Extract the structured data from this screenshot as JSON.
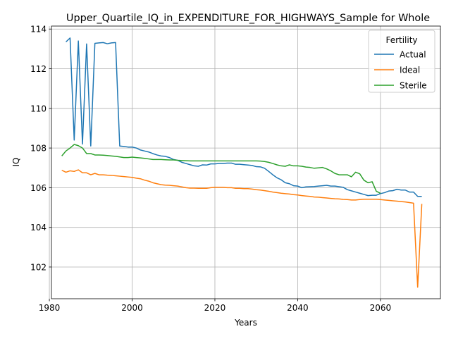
{
  "chart_data": {
    "type": "line",
    "title": "Upper_Quartile_IQ_in_EXPENDITURE_FOR_HIGHWAYS_Sample for Whole",
    "xlabel": "Years",
    "ylabel": "IQ",
    "xlim": [
      1980.5,
      2074.5
    ],
    "ylim": [
      100.4,
      114.15
    ],
    "xticks": [
      1980,
      2000,
      2020,
      2040,
      2060
    ],
    "yticks": [
      102,
      104,
      106,
      108,
      110,
      112,
      114
    ],
    "grid": true,
    "legend": {
      "title": "Fertility",
      "placement": "top-right"
    },
    "series": [
      {
        "name": "Actual",
        "color": "#1f77b4",
        "points": [
          [
            1984,
            113.35
          ],
          [
            1985,
            113.55
          ],
          [
            1986,
            108.4
          ],
          [
            1987,
            113.4
          ],
          [
            1988,
            108.2
          ],
          [
            1989,
            113.25
          ],
          [
            1990,
            108.1
          ],
          [
            1991,
            113.28
          ],
          [
            1992,
            113.3
          ],
          [
            1993,
            113.32
          ],
          [
            1994,
            113.26
          ],
          [
            1995,
            113.3
          ],
          [
            1996,
            113.32
          ],
          [
            1997,
            108.1
          ],
          [
            1998,
            108.08
          ],
          [
            1999,
            108.05
          ],
          [
            2000,
            108.05
          ],
          [
            2001,
            108.0
          ],
          [
            2002,
            107.9
          ],
          [
            2003,
            107.85
          ],
          [
            2004,
            107.8
          ],
          [
            2005,
            107.72
          ],
          [
            2006,
            107.65
          ],
          [
            2007,
            107.6
          ],
          [
            2008,
            107.58
          ],
          [
            2009,
            107.52
          ],
          [
            2010,
            107.42
          ],
          [
            2011,
            107.38
          ],
          [
            2012,
            107.28
          ],
          [
            2013,
            107.22
          ],
          [
            2014,
            107.16
          ],
          [
            2015,
            107.1
          ],
          [
            2016,
            107.08
          ],
          [
            2017,
            107.15
          ],
          [
            2018,
            107.14
          ],
          [
            2019,
            107.2
          ],
          [
            2020,
            107.2
          ],
          [
            2021,
            107.22
          ],
          [
            2022,
            107.22
          ],
          [
            2023,
            107.24
          ],
          [
            2024,
            107.24
          ],
          [
            2025,
            107.18
          ],
          [
            2026,
            107.18
          ],
          [
            2027,
            107.16
          ],
          [
            2028,
            107.14
          ],
          [
            2029,
            107.12
          ],
          [
            2030,
            107.06
          ],
          [
            2031,
            107.05
          ],
          [
            2032,
            106.98
          ],
          [
            2033,
            106.82
          ],
          [
            2034,
            106.65
          ],
          [
            2035,
            106.5
          ],
          [
            2036,
            106.4
          ],
          [
            2037,
            106.25
          ],
          [
            2038,
            106.2
          ],
          [
            2039,
            106.1
          ],
          [
            2040,
            106.08
          ],
          [
            2041,
            106.0
          ],
          [
            2042,
            106.04
          ],
          [
            2043,
            106.05
          ],
          [
            2044,
            106.06
          ],
          [
            2045,
            106.08
          ],
          [
            2046,
            106.1
          ],
          [
            2047,
            106.12
          ],
          [
            2048,
            106.08
          ],
          [
            2049,
            106.08
          ],
          [
            2050,
            106.05
          ],
          [
            2051,
            106.02
          ],
          [
            2052,
            105.9
          ],
          [
            2053,
            105.84
          ],
          [
            2054,
            105.78
          ],
          [
            2055,
            105.72
          ],
          [
            2056,
            105.66
          ],
          [
            2057,
            105.6
          ],
          [
            2058,
            105.62
          ],
          [
            2059,
            105.62
          ],
          [
            2060,
            105.7
          ],
          [
            2061,
            105.75
          ],
          [
            2062,
            105.83
          ],
          [
            2063,
            105.85
          ],
          [
            2064,
            105.92
          ],
          [
            2065,
            105.88
          ],
          [
            2066,
            105.88
          ],
          [
            2067,
            105.78
          ],
          [
            2068,
            105.78
          ],
          [
            2069,
            105.56
          ],
          [
            2070,
            105.56
          ]
        ]
      },
      {
        "name": "Ideal",
        "color": "#ff7f0e",
        "points": [
          [
            1983,
            106.88
          ],
          [
            1984,
            106.78
          ],
          [
            1985,
            106.85
          ],
          [
            1986,
            106.82
          ],
          [
            1987,
            106.9
          ],
          [
            1988,
            106.75
          ],
          [
            1989,
            106.75
          ],
          [
            1990,
            106.65
          ],
          [
            1991,
            106.72
          ],
          [
            1992,
            106.65
          ],
          [
            1993,
            106.65
          ],
          [
            1994,
            106.63
          ],
          [
            1995,
            106.62
          ],
          [
            1996,
            106.6
          ],
          [
            1997,
            106.58
          ],
          [
            1998,
            106.56
          ],
          [
            1999,
            106.54
          ],
          [
            2000,
            106.52
          ],
          [
            2001,
            106.48
          ],
          [
            2002,
            106.45
          ],
          [
            2003,
            106.38
          ],
          [
            2004,
            106.33
          ],
          [
            2005,
            106.25
          ],
          [
            2006,
            106.2
          ],
          [
            2007,
            106.15
          ],
          [
            2008,
            106.13
          ],
          [
            2009,
            106.12
          ],
          [
            2010,
            106.1
          ],
          [
            2011,
            106.08
          ],
          [
            2012,
            106.04
          ],
          [
            2013,
            106.0
          ],
          [
            2014,
            105.98
          ],
          [
            2015,
            105.98
          ],
          [
            2016,
            105.97
          ],
          [
            2017,
            105.97
          ],
          [
            2018,
            105.97
          ],
          [
            2019,
            106.0
          ],
          [
            2020,
            106.02
          ],
          [
            2021,
            106.02
          ],
          [
            2022,
            106.02
          ],
          [
            2023,
            106.0
          ],
          [
            2024,
            106.0
          ],
          [
            2025,
            105.97
          ],
          [
            2026,
            105.97
          ],
          [
            2027,
            105.95
          ],
          [
            2028,
            105.95
          ],
          [
            2029,
            105.93
          ],
          [
            2030,
            105.9
          ],
          [
            2031,
            105.88
          ],
          [
            2032,
            105.85
          ],
          [
            2033,
            105.82
          ],
          [
            2034,
            105.78
          ],
          [
            2035,
            105.75
          ],
          [
            2036,
            105.72
          ],
          [
            2037,
            105.7
          ],
          [
            2038,
            105.68
          ],
          [
            2039,
            105.65
          ],
          [
            2040,
            105.63
          ],
          [
            2041,
            105.6
          ],
          [
            2042,
            105.58
          ],
          [
            2043,
            105.56
          ],
          [
            2044,
            105.53
          ],
          [
            2045,
            105.52
          ],
          [
            2046,
            105.5
          ],
          [
            2047,
            105.48
          ],
          [
            2048,
            105.46
          ],
          [
            2049,
            105.44
          ],
          [
            2050,
            105.43
          ],
          [
            2051,
            105.41
          ],
          [
            2052,
            105.4
          ],
          [
            2053,
            105.38
          ],
          [
            2054,
            105.38
          ],
          [
            2055,
            105.4
          ],
          [
            2056,
            105.42
          ],
          [
            2057,
            105.42
          ],
          [
            2058,
            105.42
          ],
          [
            2059,
            105.42
          ],
          [
            2060,
            105.4
          ],
          [
            2061,
            105.38
          ],
          [
            2062,
            105.36
          ],
          [
            2063,
            105.34
          ],
          [
            2064,
            105.32
          ],
          [
            2065,
            105.3
          ],
          [
            2066,
            105.28
          ],
          [
            2067,
            105.25
          ],
          [
            2068,
            105.22
          ],
          [
            2069,
            100.98
          ],
          [
            2070,
            105.18
          ]
        ]
      },
      {
        "name": "Sterile",
        "color": "#2ca02c",
        "points": [
          [
            1983,
            107.6
          ],
          [
            1984,
            107.85
          ],
          [
            1985,
            108.0
          ],
          [
            1986,
            108.18
          ],
          [
            1987,
            108.12
          ],
          [
            1988,
            108.0
          ],
          [
            1989,
            107.72
          ],
          [
            1990,
            107.72
          ],
          [
            1991,
            107.65
          ],
          [
            1992,
            107.65
          ],
          [
            1993,
            107.64
          ],
          [
            1994,
            107.62
          ],
          [
            1995,
            107.6
          ],
          [
            1996,
            107.58
          ],
          [
            1997,
            107.55
          ],
          [
            1998,
            107.52
          ],
          [
            1999,
            107.52
          ],
          [
            2000,
            107.54
          ],
          [
            2001,
            107.52
          ],
          [
            2002,
            107.5
          ],
          [
            2003,
            107.48
          ],
          [
            2004,
            107.45
          ],
          [
            2005,
            107.42
          ],
          [
            2006,
            107.42
          ],
          [
            2007,
            107.42
          ],
          [
            2008,
            107.41
          ],
          [
            2009,
            107.4
          ],
          [
            2010,
            107.4
          ],
          [
            2011,
            107.38
          ],
          [
            2012,
            107.37
          ],
          [
            2013,
            107.36
          ],
          [
            2014,
            107.35
          ],
          [
            2015,
            107.35
          ],
          [
            2016,
            107.35
          ],
          [
            2017,
            107.35
          ],
          [
            2018,
            107.35
          ],
          [
            2019,
            107.35
          ],
          [
            2020,
            107.35
          ],
          [
            2021,
            107.35
          ],
          [
            2022,
            107.35
          ],
          [
            2023,
            107.35
          ],
          [
            2024,
            107.35
          ],
          [
            2025,
            107.35
          ],
          [
            2026,
            107.35
          ],
          [
            2027,
            107.35
          ],
          [
            2028,
            107.35
          ],
          [
            2029,
            107.35
          ],
          [
            2030,
            107.35
          ],
          [
            2031,
            107.34
          ],
          [
            2032,
            107.32
          ],
          [
            2033,
            107.28
          ],
          [
            2034,
            107.22
          ],
          [
            2035,
            107.15
          ],
          [
            2036,
            107.1
          ],
          [
            2037,
            107.08
          ],
          [
            2038,
            107.15
          ],
          [
            2039,
            107.1
          ],
          [
            2040,
            107.1
          ],
          [
            2041,
            107.08
          ],
          [
            2042,
            107.04
          ],
          [
            2043,
            107.02
          ],
          [
            2044,
            106.98
          ],
          [
            2045,
            107.0
          ],
          [
            2046,
            107.02
          ],
          [
            2047,
            106.95
          ],
          [
            2048,
            106.85
          ],
          [
            2049,
            106.72
          ],
          [
            2050,
            106.65
          ],
          [
            2051,
            106.65
          ],
          [
            2052,
            106.65
          ],
          [
            2053,
            106.55
          ],
          [
            2054,
            106.78
          ],
          [
            2055,
            106.7
          ],
          [
            2056,
            106.38
          ],
          [
            2057,
            106.25
          ],
          [
            2058,
            106.3
          ],
          [
            2059,
            105.82
          ],
          [
            2060,
            105.72
          ]
        ]
      }
    ]
  }
}
